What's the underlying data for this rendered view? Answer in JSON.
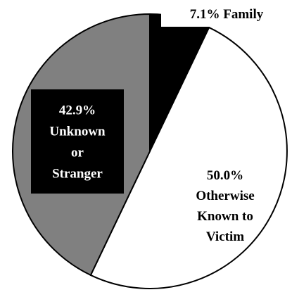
{
  "chart_data": {
    "type": "pie",
    "slices": [
      {
        "label": "Family",
        "value": 7.1,
        "pct_label": "7.1%",
        "lines": [
          "7.1% Family"
        ],
        "color": "#000000",
        "text_color": "#000000"
      },
      {
        "label": "Otherwise Known to Victim",
        "value": 50.0,
        "pct_label": "50.0%",
        "lines": [
          "50.0%",
          "Otherwise",
          "Known to",
          "Victim"
        ],
        "color": "#ffffff",
        "text_color": "#000000"
      },
      {
        "label": "Unknown or Stranger",
        "value": 42.9,
        "pct_label": "42.9%",
        "lines": [
          "42.9%",
          "Unknown",
          "or",
          "Stranger"
        ],
        "color": "#808080",
        "text_color": "#ffffff"
      }
    ]
  }
}
